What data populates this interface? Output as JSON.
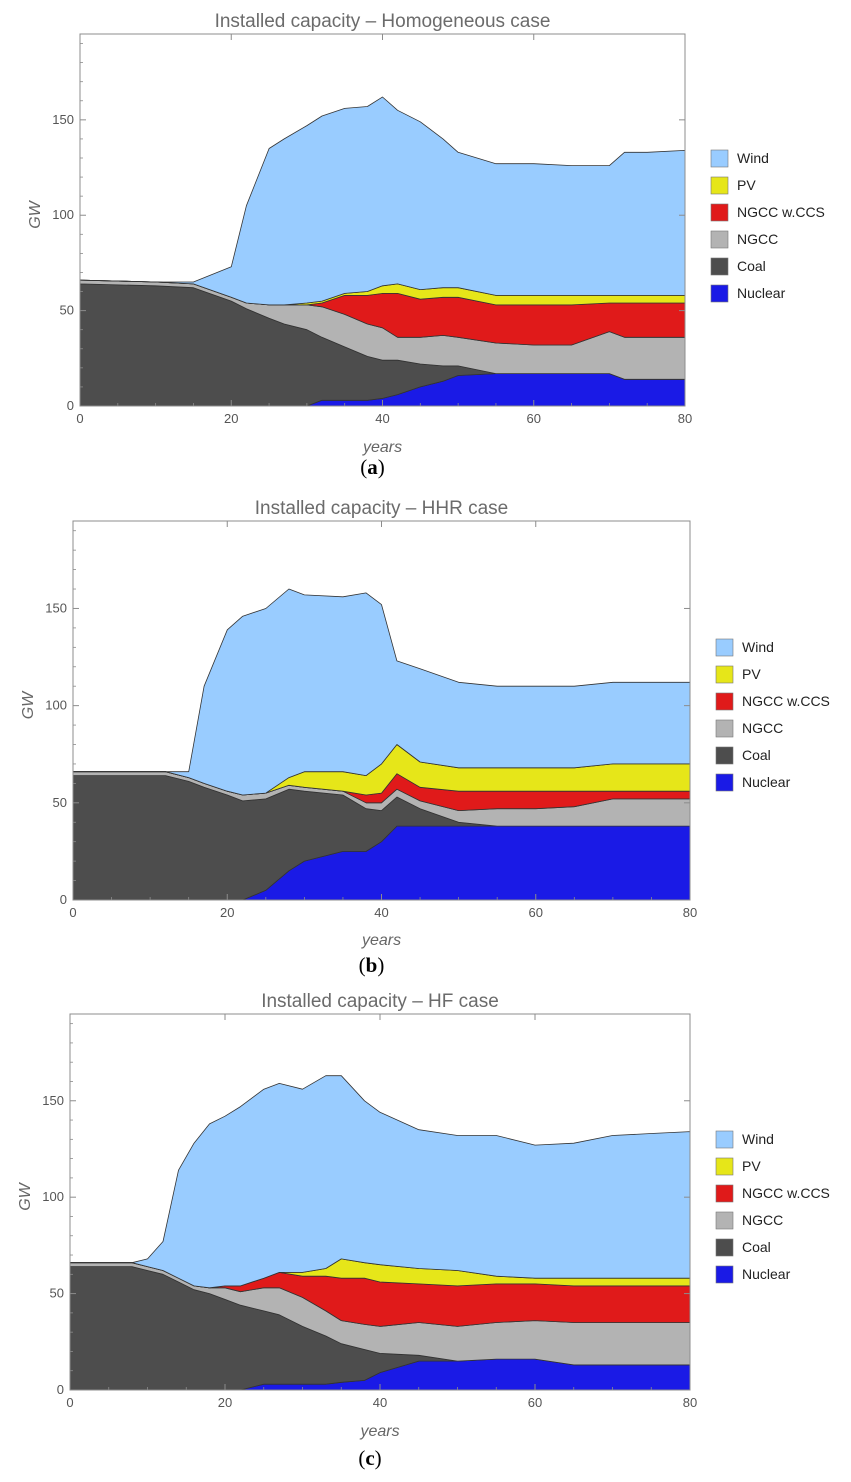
{
  "figure": {
    "legend": [
      {
        "label": "Wind",
        "color": "#99ccff"
      },
      {
        "label": "PV",
        "color": "#e6e619"
      },
      {
        "label": "NGCC w.CCS",
        "color": "#e01a1a"
      },
      {
        "label": "NGCC",
        "color": "#b3b3b3"
      },
      {
        "label": "Coal",
        "color": "#4d4d4d"
      },
      {
        "label": "Nuclear",
        "color": "#1a1ae6"
      }
    ]
  },
  "chart_data": [
    {
      "type": "area",
      "stacked": true,
      "title": "Installed capacity – Homogeneous case",
      "caption_open": "(",
      "caption_letter": "a",
      "caption_close": ")",
      "xlabel": "years",
      "ylabel": "GW",
      "xlim": [
        0,
        80
      ],
      "ylim": [
        0,
        195
      ],
      "xticks": [
        "0",
        "20",
        "40",
        "60",
        "80"
      ],
      "yticks": [
        "0",
        "50",
        "100",
        "150"
      ],
      "x": [
        0,
        10,
        15,
        20,
        22,
        25,
        27,
        30,
        32,
        35,
        38,
        40,
        42,
        45,
        48,
        50,
        55,
        60,
        65,
        70,
        72,
        75,
        80
      ],
      "series": [
        {
          "name": "Nuclear",
          "color": "#1a1ae6",
          "values": [
            0,
            0,
            0,
            0,
            0,
            0,
            0,
            0,
            3,
            3,
            3,
            4,
            6,
            10,
            13,
            16,
            17,
            17,
            17,
            17,
            14,
            14,
            14
          ]
        },
        {
          "name": "Coal",
          "color": "#4d4d4d",
          "values": [
            64,
            63,
            62,
            55,
            51,
            46,
            43,
            40,
            33,
            28,
            23,
            20,
            18,
            12,
            8,
            5,
            0,
            0,
            0,
            0,
            0,
            0,
            0
          ]
        },
        {
          "name": "NGCC",
          "color": "#b3b3b3",
          "values": [
            2,
            2,
            2,
            2,
            3,
            7,
            10,
            13,
            16,
            17,
            17,
            17,
            12,
            14,
            16,
            15,
            16,
            15,
            15,
            22,
            22,
            22,
            22
          ]
        },
        {
          "name": "NGCC w.CCS",
          "color": "#e01a1a",
          "values": [
            0,
            0,
            0,
            0,
            0,
            0,
            0,
            0,
            2,
            10,
            15,
            18,
            23,
            20,
            20,
            21,
            20,
            21,
            21,
            15,
            18,
            18,
            18
          ]
        },
        {
          "name": "PV",
          "color": "#e6e619",
          "values": [
            0,
            0,
            0,
            0,
            0,
            0,
            0,
            1,
            1,
            1,
            2,
            4,
            5,
            5,
            5,
            5,
            5,
            5,
            5,
            4,
            4,
            4,
            4
          ]
        },
        {
          "name": "Wind",
          "color": "#99ccff",
          "values": [
            0,
            0,
            1,
            16,
            51,
            82,
            87,
            93,
            97,
            97,
            97,
            99,
            91,
            88,
            78,
            71,
            69,
            69,
            68,
            68,
            75,
            75,
            76
          ]
        }
      ]
    },
    {
      "type": "area",
      "stacked": true,
      "title": "Installed capacity – HHR case",
      "caption_open": "(",
      "caption_letter": "b",
      "caption_close": ")",
      "xlabel": "years",
      "ylabel": "GW",
      "xlim": [
        0,
        80
      ],
      "ylim": [
        0,
        195
      ],
      "xticks": [
        "0",
        "20",
        "40",
        "60",
        "80"
      ],
      "yticks": [
        "0",
        "50",
        "100",
        "150"
      ],
      "x": [
        0,
        12,
        15,
        17,
        20,
        22,
        25,
        28,
        30,
        35,
        38,
        40,
        42,
        45,
        50,
        55,
        60,
        65,
        70,
        75,
        80
      ],
      "series": [
        {
          "name": "Nuclear",
          "color": "#1a1ae6",
          "values": [
            0,
            0,
            0,
            0,
            0,
            0,
            5,
            15,
            20,
            25,
            25,
            30,
            38,
            38,
            38,
            38,
            38,
            38,
            38,
            38,
            38
          ]
        },
        {
          "name": "Coal",
          "color": "#4d4d4d",
          "values": [
            64,
            64,
            61,
            58,
            54,
            51,
            47,
            42,
            36,
            29,
            22,
            16,
            15,
            9,
            2,
            0,
            0,
            0,
            0,
            0,
            0
          ]
        },
        {
          "name": "NGCC",
          "color": "#b3b3b3",
          "values": [
            2,
            2,
            2,
            2,
            2,
            3,
            3,
            2,
            2,
            2,
            3,
            4,
            4,
            4,
            6,
            9,
            9,
            10,
            14,
            14,
            14
          ]
        },
        {
          "name": "NGCC w.CCS",
          "color": "#e01a1a",
          "values": [
            0,
            0,
            0,
            0,
            0,
            0,
            0,
            0,
            0,
            0,
            4,
            5,
            8,
            7,
            10,
            9,
            9,
            8,
            4,
            4,
            4
          ]
        },
        {
          "name": "PV",
          "color": "#e6e619",
          "values": [
            0,
            0,
            0,
            0,
            0,
            0,
            0,
            4,
            8,
            10,
            10,
            15,
            15,
            13,
            12,
            12,
            12,
            12,
            14,
            14,
            14
          ]
        },
        {
          "name": "Wind",
          "color": "#99ccff",
          "values": [
            0,
            0,
            3,
            50,
            83,
            92,
            95,
            97,
            91,
            90,
            94,
            82,
            43,
            48,
            44,
            42,
            42,
            42,
            42,
            42,
            42
          ]
        }
      ]
    },
    {
      "type": "area",
      "stacked": true,
      "title": "Installed capacity – HF case",
      "caption_open": "(",
      "caption_letter": "c",
      "caption_close": ")",
      "xlabel": "years",
      "ylabel": "GW",
      "xlim": [
        0,
        80
      ],
      "ylim": [
        0,
        195
      ],
      "xticks": [
        "0",
        "20",
        "40",
        "60",
        "80"
      ],
      "yticks": [
        "0",
        "50",
        "100",
        "150"
      ],
      "x": [
        0,
        8,
        10,
        12,
        14,
        16,
        18,
        20,
        22,
        25,
        27,
        30,
        33,
        35,
        38,
        40,
        45,
        50,
        55,
        60,
        65,
        70,
        75,
        80
      ],
      "series": [
        {
          "name": "Nuclear",
          "color": "#1a1ae6",
          "values": [
            0,
            0,
            0,
            0,
            0,
            0,
            0,
            0,
            0,
            3,
            3,
            3,
            3,
            4,
            5,
            9,
            15,
            15,
            16,
            16,
            13,
            13,
            13,
            13
          ]
        },
        {
          "name": "Coal",
          "color": "#4d4d4d",
          "values": [
            64,
            64,
            62,
            60,
            56,
            52,
            50,
            47,
            44,
            38,
            36,
            30,
            25,
            20,
            16,
            10,
            3,
            0,
            0,
            0,
            0,
            0,
            0,
            0
          ]
        },
        {
          "name": "NGCC",
          "color": "#b3b3b3",
          "values": [
            2,
            2,
            2,
            2,
            2,
            2,
            3,
            6,
            7,
            12,
            14,
            15,
            13,
            12,
            13,
            14,
            17,
            18,
            19,
            20,
            22,
            22,
            22,
            22
          ]
        },
        {
          "name": "NGCC w.CCS",
          "color": "#e01a1a",
          "values": [
            0,
            0,
            0,
            0,
            0,
            0,
            0,
            1,
            3,
            5,
            8,
            11,
            18,
            22,
            24,
            23,
            20,
            21,
            20,
            19,
            19,
            19,
            19,
            19
          ]
        },
        {
          "name": "PV",
          "color": "#e6e619",
          "values": [
            0,
            0,
            0,
            0,
            0,
            0,
            0,
            0,
            0,
            0,
            0,
            2,
            4,
            10,
            8,
            9,
            8,
            8,
            4,
            3,
            4,
            4,
            4,
            4
          ]
        },
        {
          "name": "Wind",
          "color": "#99ccff",
          "values": [
            0,
            0,
            4,
            15,
            56,
            74,
            85,
            88,
            93,
            98,
            98,
            95,
            100,
            95,
            84,
            79,
            72,
            70,
            73,
            69,
            70,
            74,
            75,
            76
          ]
        }
      ]
    }
  ]
}
